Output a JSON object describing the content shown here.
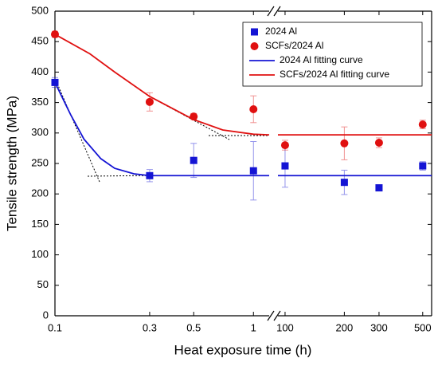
{
  "chart_data": {
    "type": "scatter",
    "xlabel": "Heat exposure time (h)",
    "ylabel": "Tensile strength (MPa)",
    "xscale": "log",
    "x_segments": [
      {
        "xlim": [
          0.1,
          1.2
        ],
        "xticks": [
          0.1,
          0.3,
          0.5,
          1
        ]
      },
      {
        "xlim": [
          92,
          555
        ],
        "xticks": [
          100,
          200,
          300,
          500
        ]
      }
    ],
    "ylim": [
      0,
      500
    ],
    "yticks": [
      0,
      50,
      100,
      150,
      200,
      250,
      300,
      350,
      400,
      450,
      500
    ],
    "legend": "upper right",
    "series": [
      {
        "name": "2024 Al",
        "color": "#1414d4",
        "marker": "square",
        "x": [
          0.1,
          0.3,
          0.5,
          1,
          100,
          200,
          300,
          500
        ],
        "values": [
          383,
          230,
          255,
          238,
          246,
          219,
          210,
          246
        ],
        "errors": [
          8,
          10,
          28,
          48,
          35,
          20,
          4,
          7
        ]
      },
      {
        "name": "SCFs/2024 Al",
        "color": "#e01010",
        "marker": "circle",
        "x": [
          0.1,
          0.3,
          0.5,
          1,
          100,
          200,
          300,
          500
        ],
        "values": [
          462,
          351,
          327,
          339,
          280,
          283,
          284,
          314
        ],
        "errors": [
          5,
          15,
          5,
          22,
          8,
          27,
          8,
          7
        ]
      },
      {
        "name": "2024 Al fitting curve",
        "color": "#1414d4",
        "marker": "line",
        "x": [
          0.1,
          0.12,
          0.14,
          0.17,
          0.2,
          0.25,
          0.3,
          1.2,
          92,
          555
        ],
        "values": [
          383,
          330,
          290,
          258,
          242,
          233,
          230,
          230,
          230,
          230
        ]
      },
      {
        "name": "SCFs/2024 Al fitting curve",
        "color": "#e01010",
        "marker": "line",
        "x": [
          0.1,
          0.15,
          0.2,
          0.3,
          0.5,
          0.7,
          1,
          1.2,
          92,
          555
        ],
        "values": [
          462,
          430,
          400,
          360,
          322,
          305,
          298,
          297,
          297,
          297
        ]
      }
    ]
  }
}
